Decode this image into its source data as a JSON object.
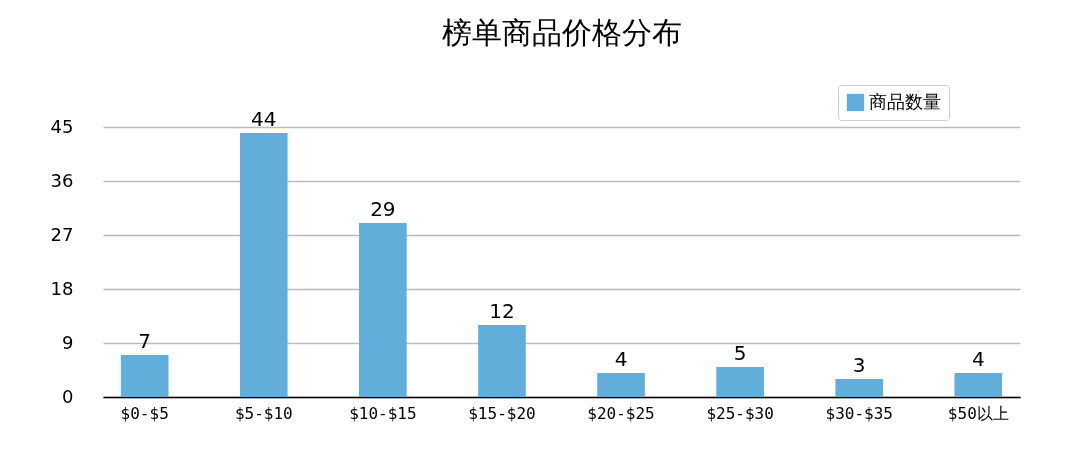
{
  "chart_data": {
    "type": "bar",
    "title": "榜单商品价格分布",
    "categories": [
      "$0-$5",
      "$5-$10",
      "$10-$15",
      "$15-$20",
      "$20-$25",
      "$25-$30",
      "$30-$35",
      "$50以上"
    ],
    "series": [
      {
        "name": "商品数量",
        "color": "#62aedb",
        "values": [
          7,
          44,
          29,
          12,
          4,
          5,
          3,
          4
        ]
      }
    ],
    "ylim": [
      0,
      45
    ],
    "yticks": [
      0,
      9,
      18,
      27,
      36,
      45
    ],
    "grid": "y",
    "legend": "top right",
    "data_labels": true
  }
}
